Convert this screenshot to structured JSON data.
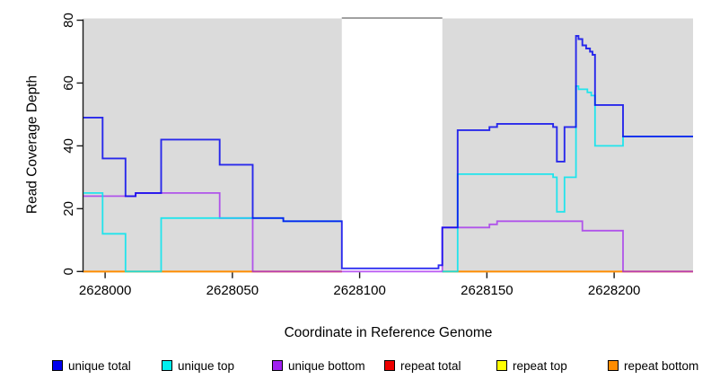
{
  "chart_data": {
    "type": "line",
    "subtype": "step-coverage",
    "title": "",
    "xlabel": "Coordinate in Reference Genome",
    "ylabel": "Read Coverage Depth",
    "xlim": [
      2627991.5,
      2628231
    ],
    "ylim": [
      0,
      80
    ],
    "x_ticks": [
      2628000,
      2628050,
      2628100,
      2628150,
      2628200
    ],
    "y_ticks": [
      0,
      20,
      40,
      60,
      80
    ],
    "grid": false,
    "panel_background": "#dbdbdb",
    "masked_region": {
      "from": 2628093,
      "to": 2628132.5,
      "fill": "#ffffff",
      "top_border": "#8c8c8c"
    },
    "gray_regions": [
      {
        "from": 2627991.5,
        "to": 2628093
      },
      {
        "from": 2628132.5,
        "to": 2628231
      }
    ],
    "series": [
      {
        "name": "repeat total",
        "color": "#dd0000",
        "opacity": 1,
        "width": 1.6,
        "segments": [
          [
            2627991.5,
            2628093,
            0
          ],
          [
            2628132.5,
            2628231,
            0
          ]
        ]
      },
      {
        "name": "repeat top",
        "color": "#ffff00",
        "opacity": 1,
        "width": 1.6,
        "segments": [
          [
            2627991.5,
            2628093,
            0
          ],
          [
            2628132.5,
            2628231,
            0
          ]
        ]
      },
      {
        "name": "repeat bottom",
        "color": "#ff8c00",
        "opacity": 1,
        "width": 1.8,
        "segments": [
          [
            2627991.5,
            2628093,
            0
          ],
          [
            2628132.5,
            2628231,
            0
          ]
        ]
      },
      {
        "name": "unique bottom",
        "color": "#a020f0",
        "opacity": 0.72,
        "width": 1.8,
        "segments": [
          [
            2627991.5,
            2628012,
            24
          ],
          [
            2628012,
            2628045,
            25
          ],
          [
            2628045,
            2628058,
            17
          ],
          [
            2628058,
            2628132.5,
            0
          ],
          [
            2628132.5,
            2628151,
            14
          ],
          [
            2628151,
            2628154,
            15
          ],
          [
            2628154,
            2628187.5,
            16
          ],
          [
            2628187.5,
            2628203.5,
            13
          ],
          [
            2628203.5,
            2628231,
            0
          ]
        ]
      },
      {
        "name": "unique top",
        "color": "#00e5ee",
        "opacity": 0.85,
        "width": 1.8,
        "segments": [
          [
            2627991.5,
            2627999,
            25
          ],
          [
            2627999,
            2628008,
            12
          ],
          [
            2628008,
            2628022,
            0
          ],
          [
            2628022,
            2628070,
            17
          ],
          [
            2628070,
            2628093,
            16
          ],
          [
            2628132.5,
            2628138.5,
            0
          ],
          [
            2628138.5,
            2628176,
            31
          ],
          [
            2628176,
            2628177.5,
            30
          ],
          [
            2628177.5,
            2628180.5,
            19
          ],
          [
            2628180.5,
            2628185,
            30
          ],
          [
            2628185,
            2628186,
            59
          ],
          [
            2628186,
            2628189.5,
            58
          ],
          [
            2628189.5,
            2628191,
            57
          ],
          [
            2628191,
            2628192.5,
            56
          ],
          [
            2628192.5,
            2628203.5,
            40
          ],
          [
            2628203.5,
            2628231,
            43
          ]
        ]
      },
      {
        "name": "unique total",
        "color": "#0000ee",
        "opacity": 0.82,
        "width": 1.9,
        "segments": [
          [
            2627991.5,
            2627999,
            49
          ],
          [
            2627999,
            2628008,
            36
          ],
          [
            2628008,
            2628012,
            24
          ],
          [
            2628012,
            2628022,
            25
          ],
          [
            2628022,
            2628045,
            42
          ],
          [
            2628045,
            2628058,
            34
          ],
          [
            2628058,
            2628070,
            17
          ],
          [
            2628070,
            2628093,
            16
          ],
          [
            2628093,
            2628131,
            1
          ],
          [
            2628131,
            2628132.5,
            2
          ],
          [
            2628132.5,
            2628138.5,
            14
          ],
          [
            2628138.5,
            2628151,
            45
          ],
          [
            2628151,
            2628154,
            46
          ],
          [
            2628154,
            2628176,
            47
          ],
          [
            2628176,
            2628177.5,
            46
          ],
          [
            2628177.5,
            2628180.5,
            35
          ],
          [
            2628180.5,
            2628185,
            46
          ],
          [
            2628185,
            2628186,
            75
          ],
          [
            2628186,
            2628187.5,
            74
          ],
          [
            2628187.5,
            2628189,
            72
          ],
          [
            2628189,
            2628190.5,
            71
          ],
          [
            2628190.5,
            2628191.5,
            70
          ],
          [
            2628191.5,
            2628192.5,
            69
          ],
          [
            2628192.5,
            2628203.5,
            53
          ],
          [
            2628203.5,
            2628231,
            43
          ]
        ]
      }
    ],
    "legend": {
      "position": "bottom",
      "items": [
        {
          "label": "unique total",
          "color": "#0000ee"
        },
        {
          "label": "unique top",
          "color": "#00eeee"
        },
        {
          "label": "unique bottom",
          "color": "#a020f0"
        },
        {
          "label": "repeat total",
          "color": "#ee0000"
        },
        {
          "label": "repeat top",
          "color": "#ffff00"
        },
        {
          "label": "repeat bottom",
          "color": "#ff8c00"
        }
      ]
    }
  }
}
